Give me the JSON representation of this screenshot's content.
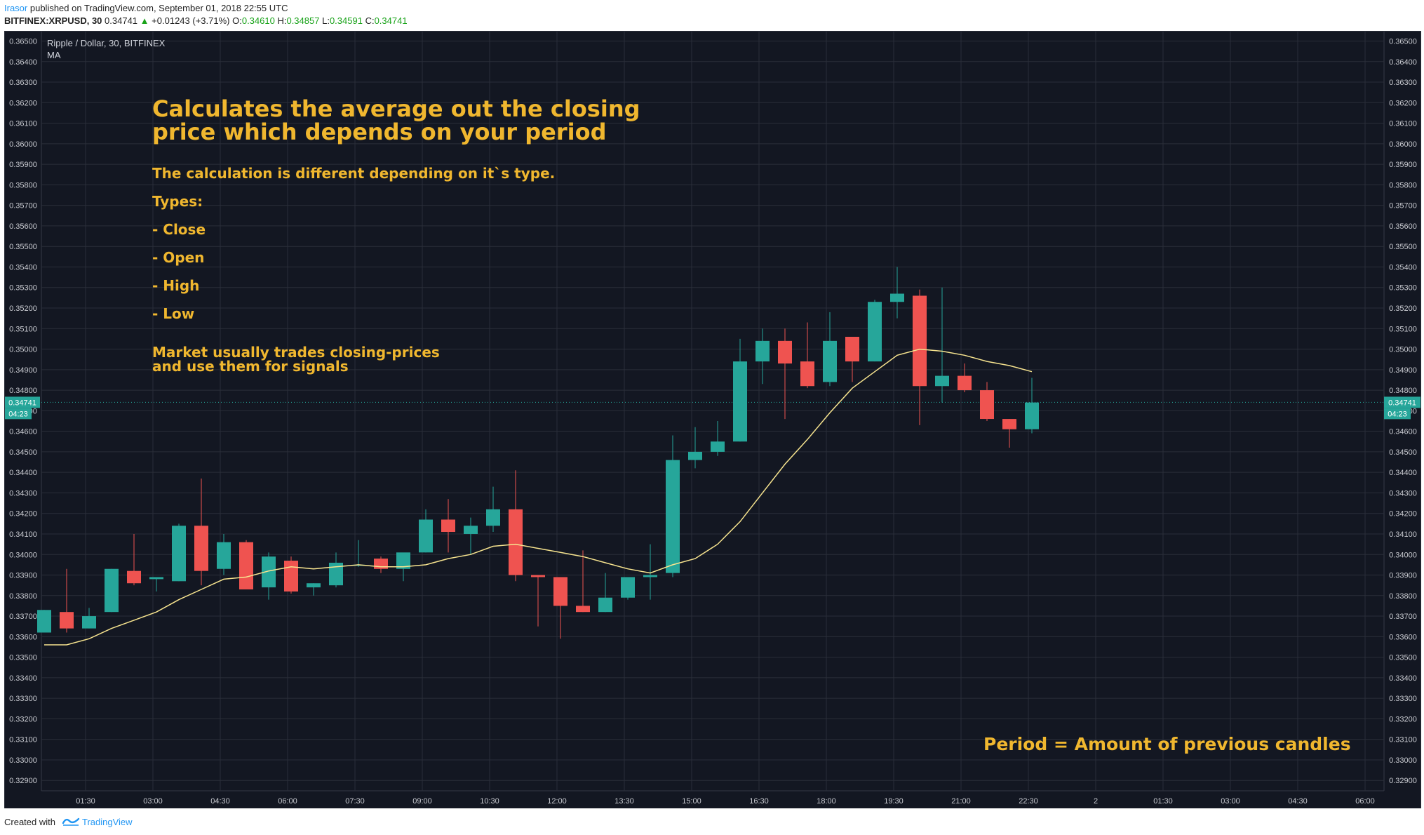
{
  "header": {
    "author": "Irasor",
    "published": "published on TradingView.com, September 01, 2018 22:55 UTC",
    "symbol": "BITFINEX:XRPUSD, 30",
    "last": "0.34741",
    "arrow": "▲",
    "change": "+0.01243 (+3.71%)",
    "o_label": "O:",
    "o_value": "0.34610",
    "h_label": "H:",
    "h_value": "0.34857",
    "l_label": "L:",
    "l_value": "0.34591",
    "c_label": "C:",
    "c_value": "0.34741"
  },
  "legend": {
    "title": "Ripple / Dollar, 30, BITFINEX",
    "indicator": "MA"
  },
  "annotations": {
    "title_line1": "Calculates the average out the closing",
    "title_line2": "price which depends on your period",
    "subtitle": "The calculation is different depending on it`s type.",
    "types": "Types:",
    "close": "- Close",
    "open": "- Open",
    "high": "- High",
    "low": "- Low",
    "market_line1": "Market usually trades closing-prices",
    "market_line2": "and use them for signals",
    "period": "Period = Amount of previous candles"
  },
  "footer": {
    "created": "Created with",
    "brand": "TradingView"
  },
  "colors": {
    "background": "#131722",
    "grid": "#2a2e39",
    "up": "#26a69a",
    "down": "#ef5350",
    "ma": "#f7e48f",
    "annotation": "#f0b72f",
    "price_tag": "#26a69a"
  },
  "chart_data": {
    "type": "candlestick",
    "title": "Ripple / Dollar, 30, BITFINEX",
    "interval": "30",
    "ylim": [
      0.3285,
      0.3655
    ],
    "y_ticks": [
      "0.36500",
      "0.36400",
      "0.36300",
      "0.36200",
      "0.36100",
      "0.36000",
      "0.35900",
      "0.35800",
      "0.35700",
      "0.35600",
      "0.35500",
      "0.35400",
      "0.35300",
      "0.35200",
      "0.35100",
      "0.35000",
      "0.34900",
      "0.34800",
      "0.34700",
      "0.34600",
      "0.34500",
      "0.34400",
      "0.34300",
      "0.34200",
      "0.34100",
      "0.34000",
      "0.33900",
      "0.33800",
      "0.33700",
      "0.33600",
      "0.33500",
      "0.33400",
      "0.33300",
      "0.33200",
      "0.33100",
      "0.33000",
      "0.32900"
    ],
    "x_ticks": [
      "01:30",
      "03:00",
      "04:30",
      "06:00",
      "07:30",
      "09:00",
      "10:30",
      "12:00",
      "13:30",
      "15:00",
      "16:30",
      "18:00",
      "19:30",
      "21:00",
      "22:30",
      "2",
      "01:30",
      "03:00",
      "04:30",
      "06:00"
    ],
    "last_price": "0.34741",
    "countdown": "04:23",
    "candles": [
      {
        "o": 0.3362,
        "h": 0.3373,
        "l": 0.3362,
        "c": 0.3373
      },
      {
        "o": 0.3372,
        "h": 0.3393,
        "l": 0.3362,
        "c": 0.3364
      },
      {
        "o": 0.3364,
        "h": 0.3374,
        "l": 0.3364,
        "c": 0.337
      },
      {
        "o": 0.3372,
        "h": 0.3393,
        "l": 0.3372,
        "c": 0.3393
      },
      {
        "o": 0.3392,
        "h": 0.341,
        "l": 0.3385,
        "c": 0.3386
      },
      {
        "o": 0.3388,
        "h": 0.3389,
        "l": 0.3382,
        "c": 0.3389
      },
      {
        "o": 0.3387,
        "h": 0.3415,
        "l": 0.3387,
        "c": 0.3414
      },
      {
        "o": 0.3414,
        "h": 0.3437,
        "l": 0.3385,
        "c": 0.3392
      },
      {
        "o": 0.3393,
        "h": 0.341,
        "l": 0.339,
        "c": 0.3406
      },
      {
        "o": 0.3406,
        "h": 0.3407,
        "l": 0.3383,
        "c": 0.3383
      },
      {
        "o": 0.3384,
        "h": 0.3401,
        "l": 0.3378,
        "c": 0.3399
      },
      {
        "o": 0.3397,
        "h": 0.3399,
        "l": 0.3381,
        "c": 0.3382
      },
      {
        "o": 0.3384,
        "h": 0.3386,
        "l": 0.338,
        "c": 0.3386
      },
      {
        "o": 0.3385,
        "h": 0.3401,
        "l": 0.3384,
        "c": 0.3396
      },
      {
        "o": 0.3395,
        "h": 0.3407,
        "l": 0.3394,
        "c": 0.3395
      },
      {
        "o": 0.3398,
        "h": 0.3399,
        "l": 0.3391,
        "c": 0.3393
      },
      {
        "o": 0.3393,
        "h": 0.34,
        "l": 0.3387,
        "c": 0.3401
      },
      {
        "o": 0.3401,
        "h": 0.3422,
        "l": 0.3401,
        "c": 0.3417
      },
      {
        "o": 0.3417,
        "h": 0.3427,
        "l": 0.3401,
        "c": 0.3411
      },
      {
        "o": 0.341,
        "h": 0.3418,
        "l": 0.34,
        "c": 0.3414
      },
      {
        "o": 0.3414,
        "h": 0.3433,
        "l": 0.3411,
        "c": 0.3422
      },
      {
        "o": 0.3422,
        "h": 0.3441,
        "l": 0.3387,
        "c": 0.339
      },
      {
        "o": 0.339,
        "h": 0.339,
        "l": 0.3365,
        "c": 0.3389
      },
      {
        "o": 0.3389,
        "h": 0.3389,
        "l": 0.3359,
        "c": 0.3375
      },
      {
        "o": 0.3375,
        "h": 0.3402,
        "l": 0.3372,
        "c": 0.3372
      },
      {
        "o": 0.3372,
        "h": 0.3391,
        "l": 0.3372,
        "c": 0.3379
      },
      {
        "o": 0.3379,
        "h": 0.3389,
        "l": 0.3378,
        "c": 0.3389
      },
      {
        "o": 0.3389,
        "h": 0.3405,
        "l": 0.3378,
        "c": 0.339
      },
      {
        "o": 0.3391,
        "h": 0.3458,
        "l": 0.3389,
        "c": 0.3446
      },
      {
        "o": 0.3446,
        "h": 0.3462,
        "l": 0.3442,
        "c": 0.345
      },
      {
        "o": 0.345,
        "h": 0.3465,
        "l": 0.3448,
        "c": 0.3455
      },
      {
        "o": 0.3455,
        "h": 0.3505,
        "l": 0.3455,
        "c": 0.3494
      },
      {
        "o": 0.3494,
        "h": 0.351,
        "l": 0.3483,
        "c": 0.3504
      },
      {
        "o": 0.3504,
        "h": 0.351,
        "l": 0.3466,
        "c": 0.3493
      },
      {
        "o": 0.3494,
        "h": 0.3513,
        "l": 0.3481,
        "c": 0.3482
      },
      {
        "o": 0.3484,
        "h": 0.3518,
        "l": 0.3482,
        "c": 0.3504
      },
      {
        "o": 0.3506,
        "h": 0.3506,
        "l": 0.3484,
        "c": 0.3494
      },
      {
        "o": 0.3494,
        "h": 0.3524,
        "l": 0.3494,
        "c": 0.3523
      },
      {
        "o": 0.3523,
        "h": 0.354,
        "l": 0.3515,
        "c": 0.3527
      },
      {
        "o": 0.3526,
        "h": 0.3529,
        "l": 0.3463,
        "c": 0.3482
      },
      {
        "o": 0.3482,
        "h": 0.353,
        "l": 0.3474,
        "c": 0.3487
      },
      {
        "o": 0.3487,
        "h": 0.3493,
        "l": 0.3479,
        "c": 0.348
      },
      {
        "o": 0.348,
        "h": 0.3484,
        "l": 0.3465,
        "c": 0.3466
      },
      {
        "o": 0.3466,
        "h": 0.3466,
        "l": 0.3452,
        "c": 0.3461
      },
      {
        "o": 0.3461,
        "h": 0.3486,
        "l": 0.3459,
        "c": 0.3474
      }
    ],
    "ma": [
      0.3356,
      0.3356,
      0.3359,
      0.3364,
      0.3368,
      0.3372,
      0.3378,
      0.3383,
      0.3388,
      0.3389,
      0.3392,
      0.3394,
      0.3393,
      0.3394,
      0.3395,
      0.3394,
      0.3394,
      0.3395,
      0.3398,
      0.34,
      0.3404,
      0.3405,
      0.3403,
      0.3401,
      0.3399,
      0.3396,
      0.3393,
      0.3391,
      0.3395,
      0.3398,
      0.3405,
      0.3416,
      0.343,
      0.3444,
      0.3456,
      0.3469,
      0.3481,
      0.3489,
      0.3497,
      0.35,
      0.3499,
      0.3497,
      0.3494,
      0.3492,
      0.3489
    ]
  }
}
